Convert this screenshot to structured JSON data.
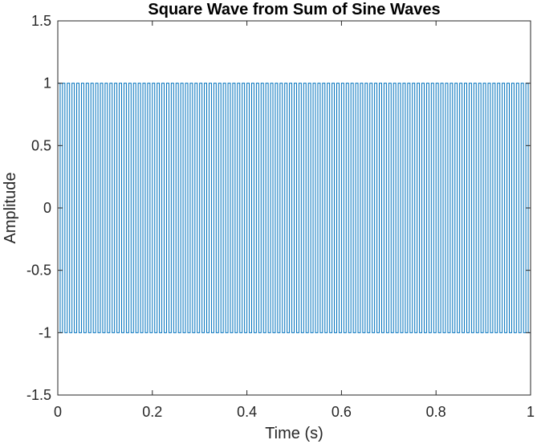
{
  "chart_data": {
    "type": "line",
    "title": "Square Wave from Sum of Sine Waves",
    "xlabel": "Time (s)",
    "ylabel": "Amplitude",
    "xlim": [
      0,
      1
    ],
    "ylim": [
      -1.5,
      1.5
    ],
    "xticks": [
      0,
      0.2,
      0.4,
      0.6,
      0.8,
      1
    ],
    "xtick_labels": [
      "0",
      "0.2",
      "0.4",
      "0.6",
      "0.8",
      "1"
    ],
    "yticks": [
      -1.5,
      -1,
      -0.5,
      0,
      0.5,
      1,
      1.5
    ],
    "ytick_labels": [
      "-1.5",
      "-1",
      "-0.5",
      "0",
      "0.5",
      "1",
      "1.5"
    ],
    "grid": false,
    "box": true,
    "series": [
      {
        "type": "square",
        "frequency_hz": 100,
        "amplitude": 1,
        "phase": "starts high at t=0",
        "color": "#0072BD",
        "values_x": [
          0,
          0.005,
          0.005,
          0.01,
          0.01
        ],
        "values_y": [
          1,
          1,
          -1,
          -1,
          1
        ]
      }
    ],
    "colors": {
      "line": "#0072BD",
      "axes": "#262626",
      "background": "#ffffff"
    }
  }
}
